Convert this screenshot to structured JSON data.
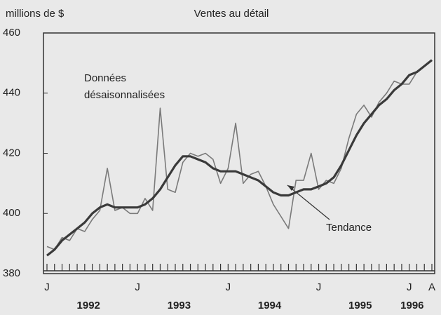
{
  "chart_data": {
    "type": "line",
    "title": "Ventes au détail",
    "y_label": "millions de $",
    "categories": [
      "J",
      null,
      null,
      null,
      null,
      null,
      null,
      null,
      null,
      null,
      null,
      null,
      "J",
      null,
      null,
      null,
      null,
      null,
      null,
      null,
      null,
      null,
      null,
      null,
      "J",
      null,
      null,
      null,
      null,
      null,
      null,
      null,
      null,
      null,
      null,
      null,
      "J",
      null,
      null,
      null,
      null,
      null,
      null,
      null,
      null,
      null,
      null,
      null,
      "J",
      null,
      null,
      "A"
    ],
    "year_labels": [
      "1992",
      "1993",
      "1994",
      "1995",
      "1996"
    ],
    "series": [
      {
        "name": "Données désaisonnalisées",
        "color": "#7a7a7a",
        "values": [
          389,
          388,
          392,
          391,
          395,
          394,
          398,
          401,
          415,
          401,
          402,
          400,
          400,
          405,
          401,
          435,
          408,
          407,
          417,
          420,
          419,
          420,
          418,
          410,
          415,
          430,
          410,
          413,
          414,
          409,
          403,
          399,
          395,
          411,
          411,
          420,
          408,
          411,
          410,
          415,
          425,
          433,
          436,
          432,
          437,
          440,
          444,
          443,
          443,
          447,
          449,
          451
        ]
      },
      {
        "name": "Tendance",
        "color": "#3a3a3a",
        "values": [
          386,
          388,
          391,
          393,
          395,
          397,
          400,
          402,
          403,
          402,
          402,
          402,
          402,
          403,
          405,
          408,
          412,
          416,
          419,
          419,
          418,
          417,
          415,
          414,
          414,
          414,
          413,
          412,
          411,
          409,
          407,
          406,
          406,
          407,
          408,
          408,
          409,
          410,
          412,
          416,
          421,
          426,
          430,
          433,
          436,
          438,
          441,
          443,
          446,
          447,
          449,
          451
        ]
      }
    ],
    "annotations": [
      "Données",
      "désaisonnalisées",
      "Tendance"
    ],
    "ylim": [
      380,
      460
    ],
    "yticks": [
      380,
      400,
      420,
      440,
      460
    ]
  }
}
